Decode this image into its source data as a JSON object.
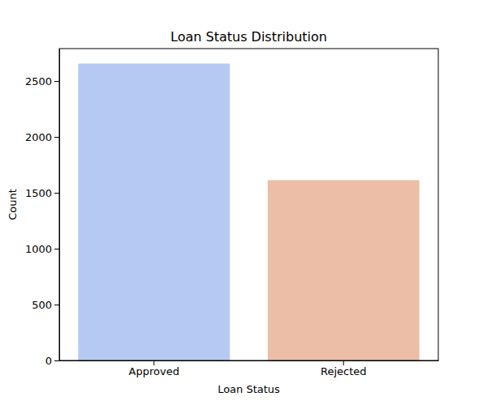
{
  "chart_data": {
    "type": "bar",
    "title": "Loan Status Distribution",
    "x_label": "Loan Status",
    "y_label": "Count",
    "categories": [
      "Approved",
      "Rejected"
    ],
    "values": [
      2656,
      1613
    ],
    "colors": [
      "#b5c9f3",
      "#ecbda7"
    ],
    "ylim": [
      0,
      2790
    ],
    "yticks": [
      0,
      500,
      1000,
      1500,
      2000,
      2500
    ],
    "grid": false
  }
}
